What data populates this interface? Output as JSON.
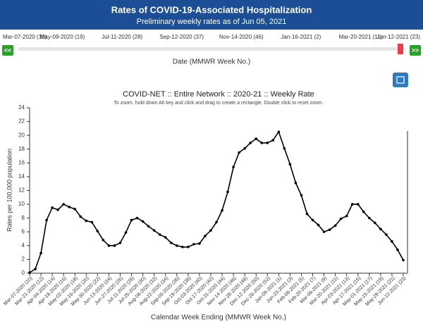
{
  "header": {
    "title": "Rates of COVID-19-Associated Hospitalization",
    "subtitle": "Preliminary weekly rates as of Jun 05, 2021"
  },
  "slider": {
    "labels": [
      "Mar-07-2020 (10)",
      "May-09-2020 (19)",
      "Jul-11-2020 (28)",
      "Sep-12-2020 (37)",
      "Nov-14-2020 (46)",
      "Jan-16-2021 (2)",
      "Mar-20-2021 (11)",
      "Jun-12-2021 (23)"
    ],
    "prev": "<<",
    "next": ">>",
    "axis_label": "Date (MMWR Week No.)"
  },
  "chart_data": {
    "type": "line",
    "title": "COVID-NET :: Entire Network :: 2020-21 :: Weekly Rate",
    "subtitle": "To zoom, hold down Alt key and click and drag to create a rectangle. Double click to reset zoom.",
    "x_label": "Calendar Week Ending (MMWR Week No.)",
    "y_label": "Rates per 100,000 population",
    "categories": [
      "Mar-07-2020 (10)",
      null,
      "Mar-21-2020 (12)",
      null,
      "Apr-04-2020 (14)",
      null,
      "Apr-18-2020 (16)",
      null,
      "May-02-2020 (18)",
      null,
      "May-16-2020 (20)",
      null,
      "May-30-2020 (22)",
      null,
      "Jun-13-2020 (24)",
      null,
      "Jun-27-2020 (26)",
      null,
      "Jul-11-2020 (28)",
      null,
      "Jul-25-2020 (30)",
      null,
      "Aug-08-2020 (32)",
      null,
      "Aug-22-2020 (34)",
      null,
      "Sep-05-2020 (36)",
      null,
      "Sep-19-2020 (38)",
      null,
      "Oct-03-2020 (40)",
      null,
      "Oct-17-2020 (42)",
      null,
      "Oct-31-2020 (44)",
      null,
      "Nov-14-2020 (46)",
      null,
      "Nov-28-2020 (48)",
      null,
      "Dec-12-2020 (50)",
      null,
      "Dec-26-2020 (52)",
      null,
      "Jan-09-2021 (1)",
      null,
      "Jan-23-2021 (3)",
      null,
      "Feb-06-2021 (5)",
      null,
      "Feb-20-2021 (7)",
      null,
      "Mar-06-2021 (9)",
      null,
      "Mar-20-2021 (11)",
      null,
      "Apr-03-2021 (13)",
      null,
      "Apr-17-2021 (15)",
      null,
      "May-01-2021 (17)",
      null,
      "May-15-2021 (19)",
      null,
      "May-29-2021 (21)",
      null,
      "Jun-12-2021 (23)"
    ],
    "values": [
      0.1,
      0.6,
      2.9,
      7.7,
      9.5,
      9.2,
      10.0,
      9.6,
      9.3,
      8.2,
      7.6,
      7.4,
      6.1,
      4.8,
      4.0,
      4.0,
      4.4,
      5.9,
      7.7,
      8.0,
      7.5,
      6.8,
      6.2,
      5.6,
      5.2,
      4.4,
      4.0,
      3.8,
      3.8,
      4.2,
      4.3,
      5.4,
      6.2,
      7.4,
      9.1,
      11.8,
      15.4,
      17.5,
      18.1,
      18.9,
      19.5,
      18.9,
      18.9,
      19.3,
      20.5,
      18.1,
      15.8,
      13.1,
      11.3,
      8.6,
      7.7,
      7.0,
      6.0,
      6.3,
      6.9,
      7.9,
      8.3,
      10.0,
      10.0,
      8.9,
      8.0,
      7.3,
      6.4,
      5.6,
      4.6,
      3.4,
      1.9
    ],
    "color": "#000000",
    "ylim": [
      0,
      24
    ],
    "yticks": [
      0,
      2,
      4,
      6,
      8,
      10,
      12,
      14,
      16,
      18,
      20,
      22,
      24
    ],
    "grid": false
  }
}
